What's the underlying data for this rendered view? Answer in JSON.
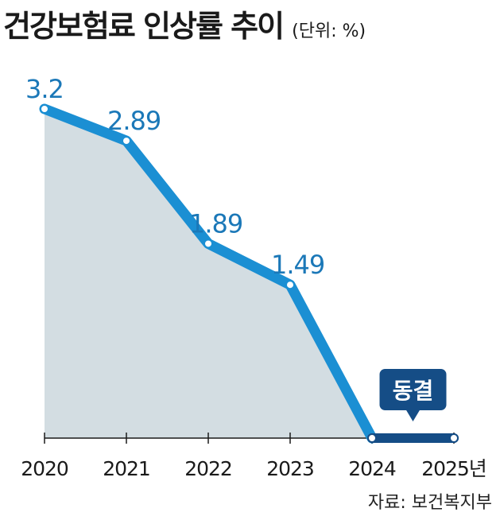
{
  "title": "건강보험료 인상률 추이",
  "unit": "(단위: %)",
  "source": "자료: 보건복지부",
  "chart_data": {
    "type": "line",
    "x": [
      "2020",
      "2021",
      "2022",
      "2023",
      "2024",
      "2025년"
    ],
    "values": [
      3.2,
      2.89,
      1.89,
      1.49,
      0,
      0
    ],
    "point_labels": [
      "3.2",
      "2.89",
      "1.89",
      "1.49",
      "",
      ""
    ],
    "freeze_label": "동결",
    "ylim": [
      0,
      3.2
    ],
    "colors": {
      "line": "#1b8fd3",
      "area": "#d3dde2",
      "label": "#1b78b8",
      "freeze": "#154d86"
    }
  }
}
